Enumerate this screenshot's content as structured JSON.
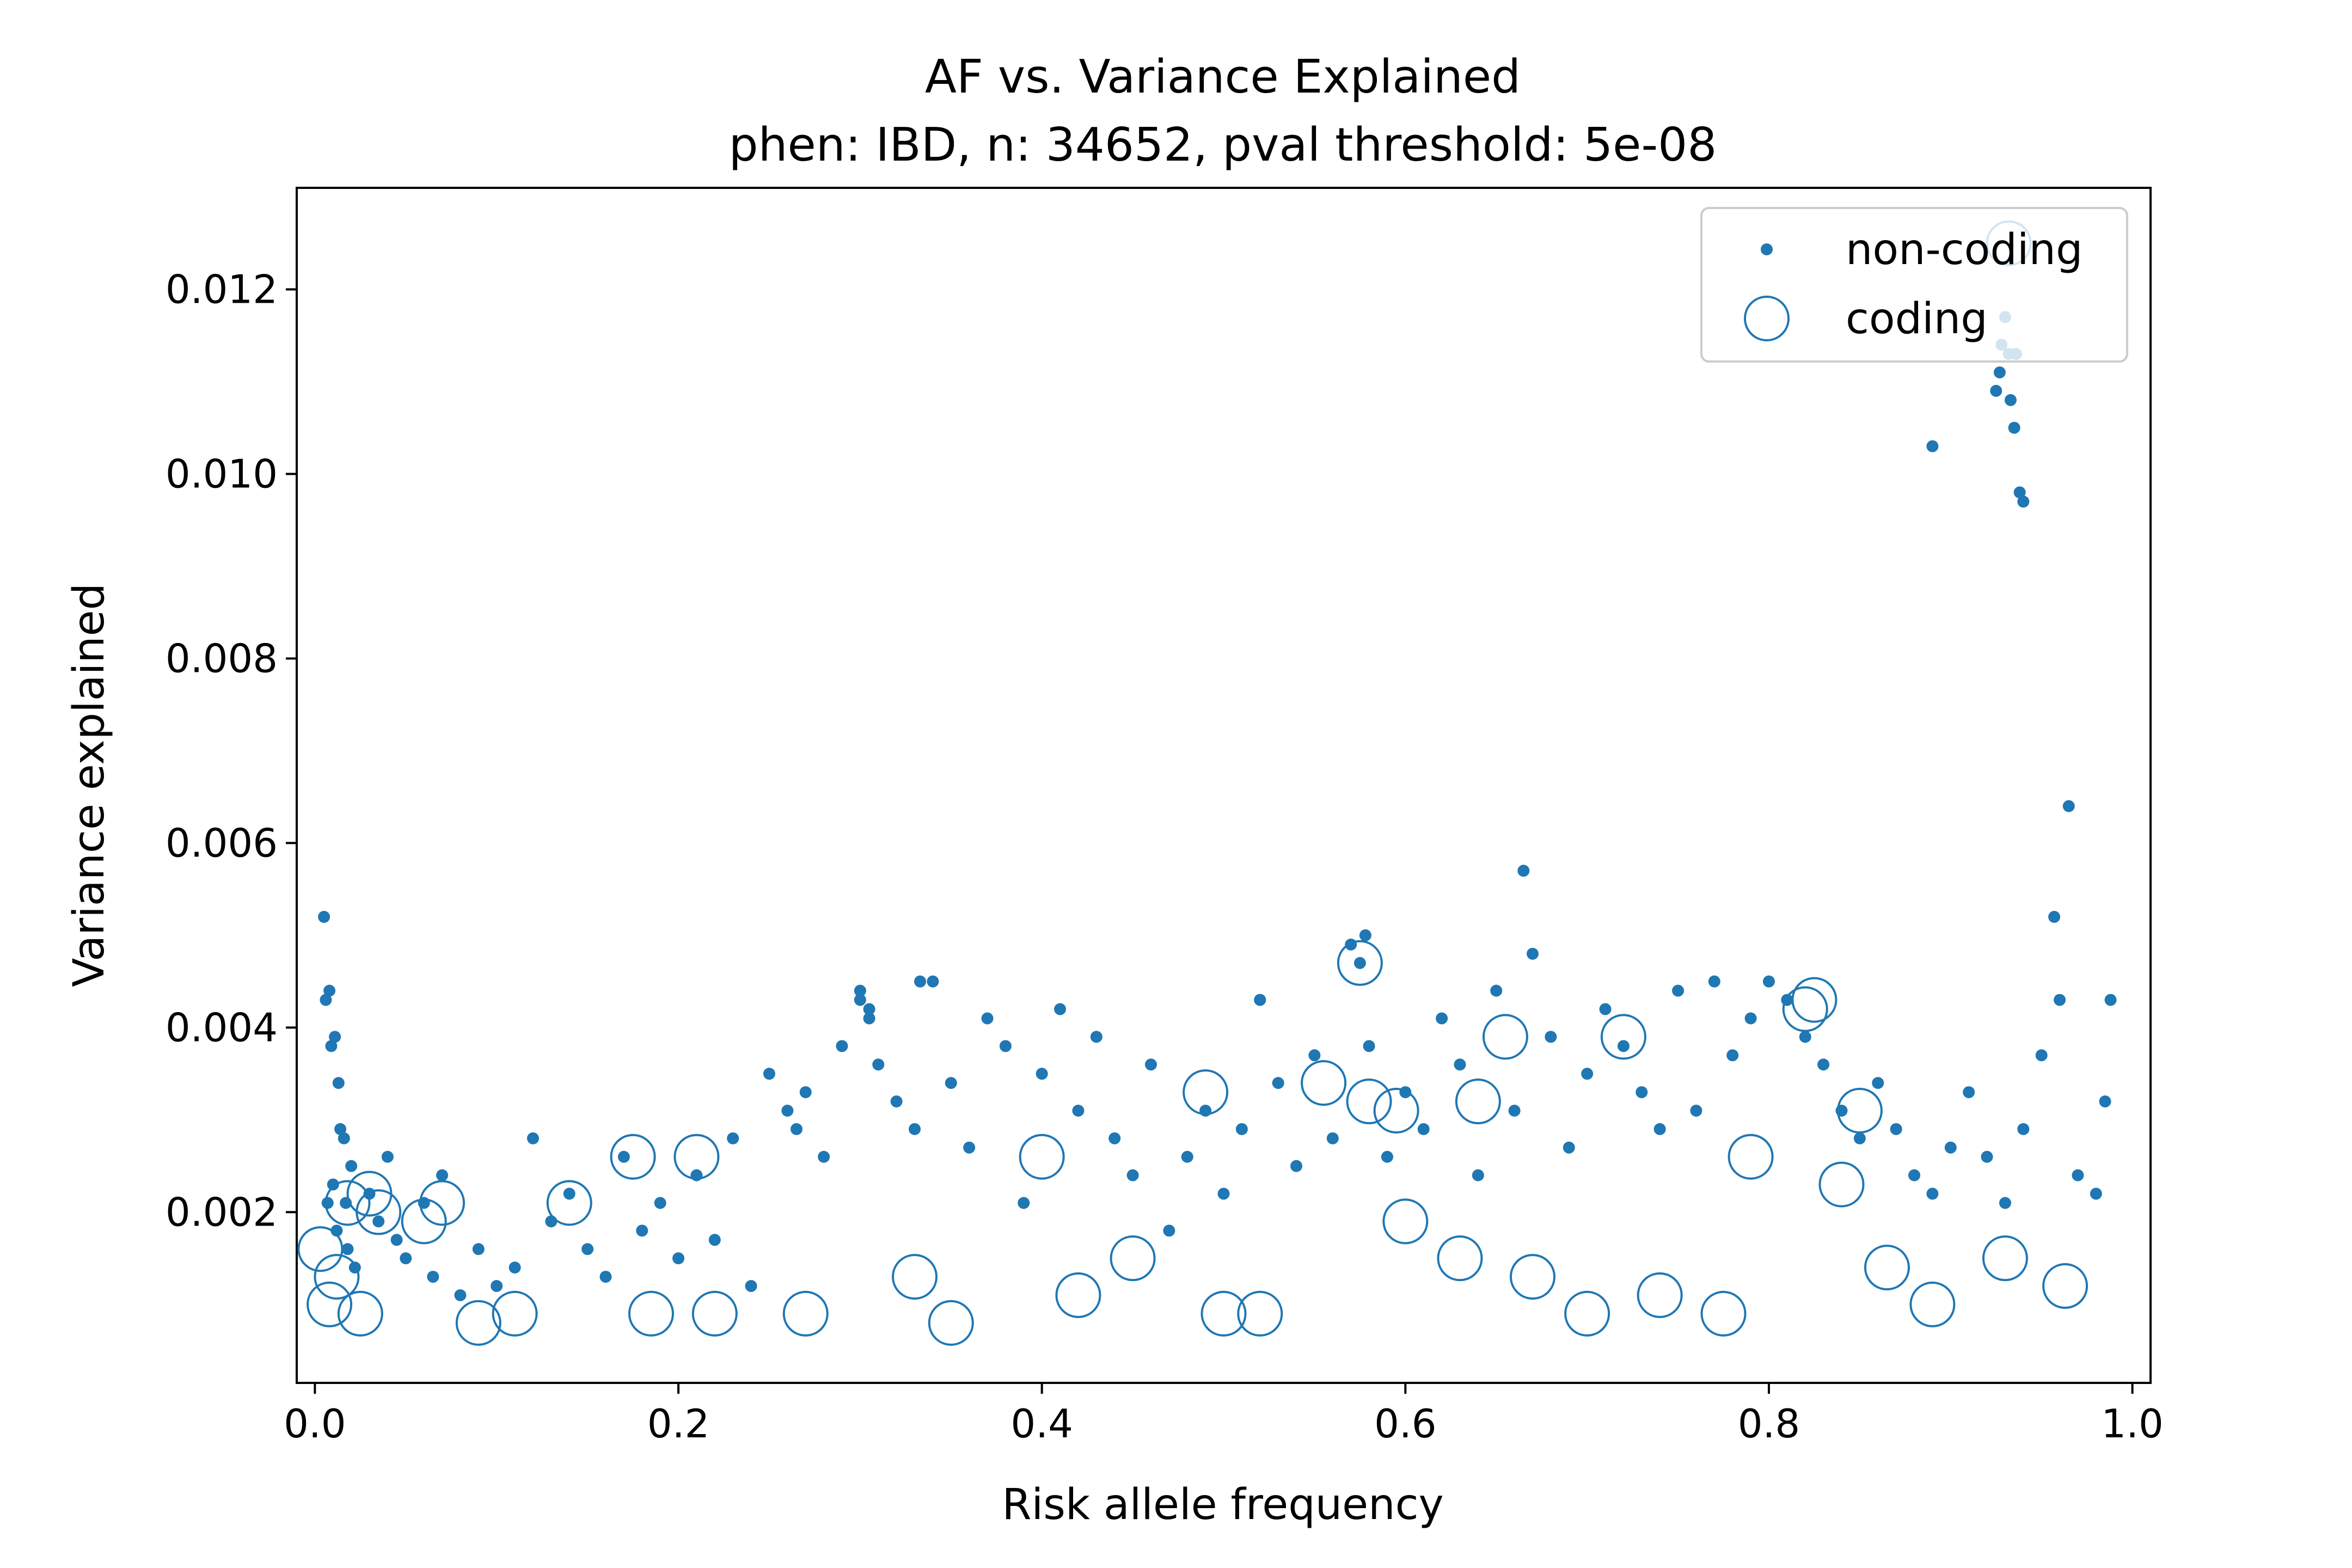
{
  "chart_data": {
    "type": "scatter",
    "title": "AF vs. Variance Explained",
    "subtitle": "phen: IBD, n: 34652, pval threshold: 5e-08",
    "xlabel": "Risk allele frequency",
    "ylabel": "Variance explained",
    "xlim": [
      -0.01,
      1.01
    ],
    "ylim": [
      0.00015,
      0.0131
    ],
    "xticks": [
      0.0,
      0.2,
      0.4,
      0.6,
      0.8,
      1.0
    ],
    "xtick_labels": [
      "0.0",
      "0.2",
      "0.4",
      "0.6",
      "0.8",
      "1.0"
    ],
    "yticks": [
      0.002,
      0.004,
      0.006,
      0.008,
      0.01,
      0.012
    ],
    "ytick_labels": [
      "0.002",
      "0.004",
      "0.006",
      "0.008",
      "0.010",
      "0.012"
    ],
    "grid": false,
    "legend_position": "top-right",
    "color": "#1f77b4",
    "series": [
      {
        "name": "non-coding",
        "marker": "filled-dot",
        "x": [
          0.005,
          0.008,
          0.011,
          0.013,
          0.016,
          0.02,
          0.01,
          0.007,
          0.012,
          0.018,
          0.022,
          0.03,
          0.035,
          0.04,
          0.045,
          0.05,
          0.06,
          0.065,
          0.07,
          0.08,
          0.09,
          0.1,
          0.11,
          0.12,
          0.13,
          0.14,
          0.15,
          0.16,
          0.17,
          0.18,
          0.19,
          0.2,
          0.21,
          0.22,
          0.23,
          0.24,
          0.25,
          0.26,
          0.265,
          0.27,
          0.28,
          0.29,
          0.3,
          0.305,
          0.31,
          0.32,
          0.33,
          0.34,
          0.35,
          0.36,
          0.37,
          0.38,
          0.39,
          0.4,
          0.41,
          0.42,
          0.43,
          0.44,
          0.45,
          0.46,
          0.47,
          0.48,
          0.49,
          0.5,
          0.51,
          0.52,
          0.53,
          0.54,
          0.55,
          0.56,
          0.57,
          0.575,
          0.58,
          0.59,
          0.6,
          0.61,
          0.62,
          0.63,
          0.64,
          0.65,
          0.66,
          0.67,
          0.68,
          0.69,
          0.7,
          0.71,
          0.72,
          0.73,
          0.74,
          0.75,
          0.76,
          0.77,
          0.78,
          0.79,
          0.8,
          0.81,
          0.82,
          0.83,
          0.84,
          0.85,
          0.86,
          0.87,
          0.88,
          0.89,
          0.9,
          0.91,
          0.92,
          0.93,
          0.94,
          0.95,
          0.96,
          0.97,
          0.98,
          0.985,
          0.006,
          0.009,
          0.014,
          0.017,
          0.925,
          0.928,
          0.93,
          0.932,
          0.935,
          0.938,
          0.94,
          0.927,
          0.933,
          0.936,
          0.89,
          0.965,
          0.957,
          0.988,
          0.665,
          0.578,
          0.333,
          0.52,
          0.3,
          0.305
        ],
        "y": [
          0.0052,
          0.0044,
          0.0039,
          0.0034,
          0.0028,
          0.0025,
          0.0023,
          0.0021,
          0.0018,
          0.0016,
          0.0014,
          0.0022,
          0.0019,
          0.0026,
          0.0017,
          0.0015,
          0.0021,
          0.0013,
          0.0024,
          0.0011,
          0.0016,
          0.0012,
          0.0014,
          0.0028,
          0.0019,
          0.0022,
          0.0016,
          0.0013,
          0.0026,
          0.0018,
          0.0021,
          0.0015,
          0.0024,
          0.0017,
          0.0028,
          0.0012,
          0.0035,
          0.0031,
          0.0029,
          0.0033,
          0.0026,
          0.0038,
          0.0043,
          0.0041,
          0.0036,
          0.0032,
          0.0029,
          0.0045,
          0.0034,
          0.0027,
          0.0041,
          0.0038,
          0.0021,
          0.0035,
          0.0042,
          0.0031,
          0.0039,
          0.0028,
          0.0024,
          0.0036,
          0.0018,
          0.0026,
          0.0031,
          0.0022,
          0.0029,
          0.0043,
          0.0034,
          0.0025,
          0.0037,
          0.0028,
          0.0049,
          0.0047,
          0.0038,
          0.0026,
          0.0033,
          0.0029,
          0.0041,
          0.0036,
          0.0024,
          0.0044,
          0.0031,
          0.0048,
          0.0039,
          0.0027,
          0.0035,
          0.0042,
          0.0038,
          0.0033,
          0.0029,
          0.0044,
          0.0031,
          0.0045,
          0.0037,
          0.0041,
          0.0045,
          0.0043,
          0.0039,
          0.0036,
          0.0031,
          0.0028,
          0.0034,
          0.0029,
          0.0024,
          0.0022,
          0.0027,
          0.0033,
          0.0026,
          0.0021,
          0.0029,
          0.0037,
          0.0043,
          0.0024,
          0.0022,
          0.0032,
          0.0043,
          0.0038,
          0.0029,
          0.0021,
          0.0109,
          0.0114,
          0.0117,
          0.0113,
          0.0105,
          0.0098,
          0.0097,
          0.0111,
          0.0108,
          0.0113,
          0.0103,
          0.0064,
          0.0052,
          0.0043,
          0.0057,
          0.005,
          0.0045,
          0.0043,
          0.0044,
          0.0042
        ]
      },
      {
        "name": "coding",
        "marker": "open-circle",
        "x": [
          0.003,
          0.008,
          0.012,
          0.018,
          0.025,
          0.03,
          0.035,
          0.06,
          0.07,
          0.09,
          0.11,
          0.14,
          0.175,
          0.185,
          0.21,
          0.22,
          0.27,
          0.33,
          0.35,
          0.4,
          0.42,
          0.45,
          0.49,
          0.5,
          0.52,
          0.555,
          0.575,
          0.58,
          0.595,
          0.6,
          0.63,
          0.64,
          0.655,
          0.67,
          0.7,
          0.72,
          0.74,
          0.775,
          0.79,
          0.82,
          0.825,
          0.84,
          0.85,
          0.865,
          0.89,
          0.93,
          0.963,
          0.932
        ],
        "y": [
          0.0016,
          0.001,
          0.0013,
          0.0021,
          0.0009,
          0.0022,
          0.002,
          0.0019,
          0.0021,
          0.0008,
          0.0009,
          0.0021,
          0.0026,
          0.0009,
          0.0026,
          0.0009,
          0.0009,
          0.0013,
          0.0008,
          0.0026,
          0.0011,
          0.0015,
          0.0033,
          0.0009,
          0.0009,
          0.0034,
          0.0047,
          0.0032,
          0.0031,
          0.0019,
          0.0015,
          0.0032,
          0.0039,
          0.0013,
          0.0009,
          0.0039,
          0.0011,
          0.0009,
          0.0026,
          0.0042,
          0.0043,
          0.0023,
          0.0031,
          0.0014,
          0.001,
          0.0015,
          0.0012,
          0.0125
        ]
      }
    ]
  }
}
